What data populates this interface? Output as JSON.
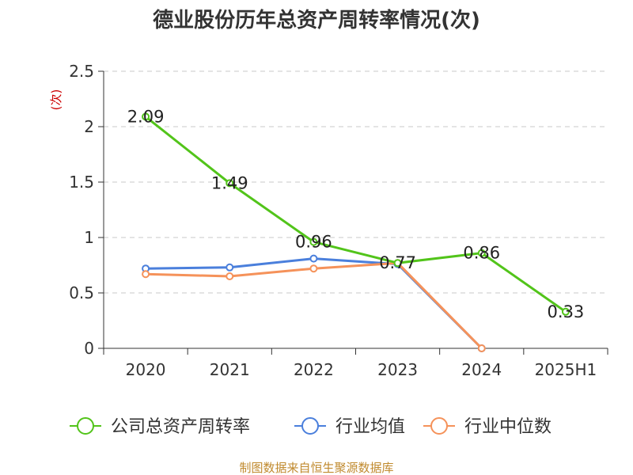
{
  "chart_data": {
    "type": "line",
    "title": "德业股份历年总资产周转率情况(次)",
    "ylabel": "(次)",
    "categories": [
      "2020",
      "2021",
      "2022",
      "2023",
      "2024",
      "2025H1"
    ],
    "ylim": [
      0,
      2.5
    ],
    "yticks": [
      0,
      0.5,
      1,
      1.5,
      2,
      2.5
    ],
    "ytick_labels": [
      "0",
      "0.5",
      "1",
      "1.5",
      "2",
      "2.5"
    ],
    "grid": true,
    "legend_position": "bottom",
    "series": [
      {
        "name": "公司总资产周转率",
        "color": "#52c41a",
        "values": [
          2.09,
          1.49,
          0.96,
          0.77,
          0.86,
          0.33
        ],
        "labels": [
          "2.09",
          "1.49",
          "0.96",
          "0.77",
          "0.86",
          "0.33"
        ]
      },
      {
        "name": "行业均值",
        "color": "#4a7fdc",
        "values": [
          0.72,
          0.73,
          0.81,
          0.76,
          0.0,
          null
        ]
      },
      {
        "name": "行业中位数",
        "color": "#f5925a",
        "values": [
          0.67,
          0.65,
          0.72,
          0.77,
          0.0,
          null
        ]
      }
    ],
    "source": "制图数据来自恒生聚源数据库"
  }
}
